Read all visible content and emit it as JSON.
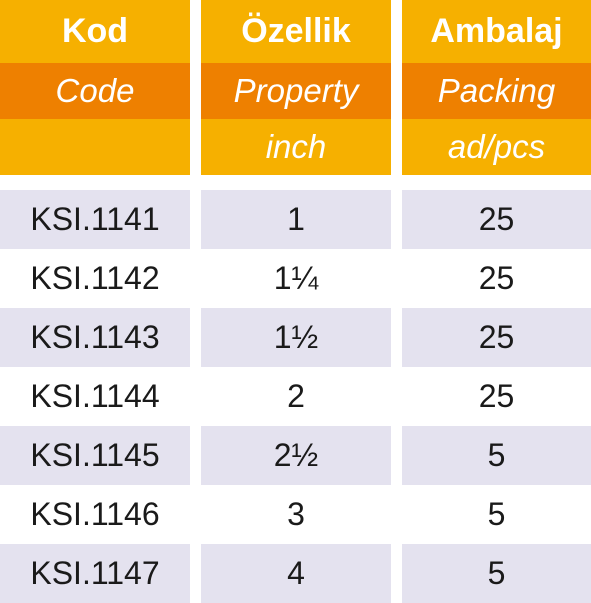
{
  "headers": [
    {
      "tr": "Kod",
      "en": "Code",
      "sub": ""
    },
    {
      "tr": "Özellik",
      "en": "Property",
      "sub": "inch"
    },
    {
      "tr": "Ambalaj",
      "en": "Packing",
      "sub": "ad/pcs"
    }
  ],
  "rows": [
    {
      "code": "KSI.1141",
      "property": "1",
      "packing": "25"
    },
    {
      "code": "KSI.1142",
      "property": "1¼",
      "packing": "25"
    },
    {
      "code": "KSI.1143",
      "property": "1½",
      "packing": "25"
    },
    {
      "code": "KSI.1144",
      "property": "2",
      "packing": "25"
    },
    {
      "code": "KSI.1145",
      "property": "2½",
      "packing": "5"
    },
    {
      "code": "KSI.1146",
      "property": "3",
      "packing": "5"
    },
    {
      "code": "KSI.1147",
      "property": "4",
      "packing": "5"
    }
  ],
  "colors": {
    "header_light": "#f6b000",
    "header_dark": "#ee8000",
    "row_shade": "#e4e2ef"
  }
}
